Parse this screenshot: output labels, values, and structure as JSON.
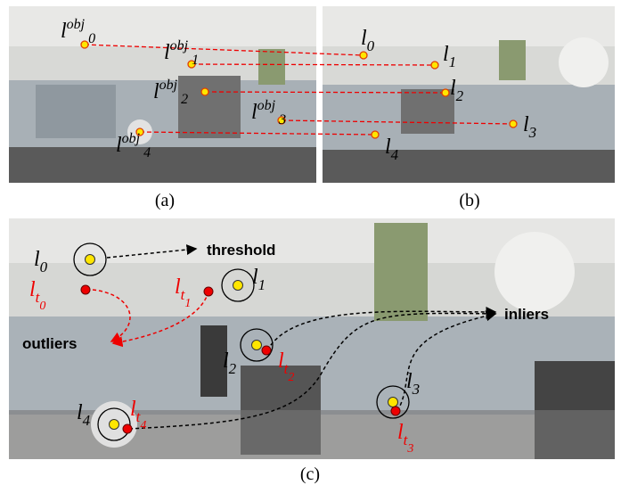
{
  "panels": {
    "a": {
      "caption": "(a)",
      "labels": [
        {
          "base": "l",
          "sup": "obj",
          "sub": "0"
        },
        {
          "base": "l",
          "sup": "obj",
          "sub": "1"
        },
        {
          "base": "l",
          "sup": "obj",
          "sub": "2"
        },
        {
          "base": "l",
          "sup": "obj",
          "sub": "3"
        },
        {
          "base": "l",
          "sup": "obj",
          "sub": "4"
        }
      ]
    },
    "b": {
      "caption": "(b)",
      "labels": [
        {
          "base": "l",
          "sub": "0"
        },
        {
          "base": "l",
          "sub": "1"
        },
        {
          "base": "l",
          "sub": "2"
        },
        {
          "base": "l",
          "sub": "3"
        },
        {
          "base": "l",
          "sub": "4"
        }
      ]
    },
    "c": {
      "caption": "(c)",
      "labels": [
        {
          "base": "l",
          "sub": "0"
        },
        {
          "base": "l",
          "sub": "1"
        },
        {
          "base": "l",
          "sub": "2"
        },
        {
          "base": "l",
          "sub": "3"
        },
        {
          "base": "l",
          "sub": "4"
        }
      ],
      "tracked_labels": [
        {
          "base": "l",
          "sub": "t",
          "subsub": "0"
        },
        {
          "base": "l",
          "sub": "t",
          "subsub": "1"
        },
        {
          "base": "l",
          "sub": "t",
          "subsub": "2"
        },
        {
          "base": "l",
          "sub": "t",
          "subsub": "3"
        },
        {
          "base": "l",
          "sub": "t",
          "subsub": "4"
        }
      ],
      "threshold": "threshold",
      "outliers": "outliers",
      "inliers": "inliers"
    }
  }
}
